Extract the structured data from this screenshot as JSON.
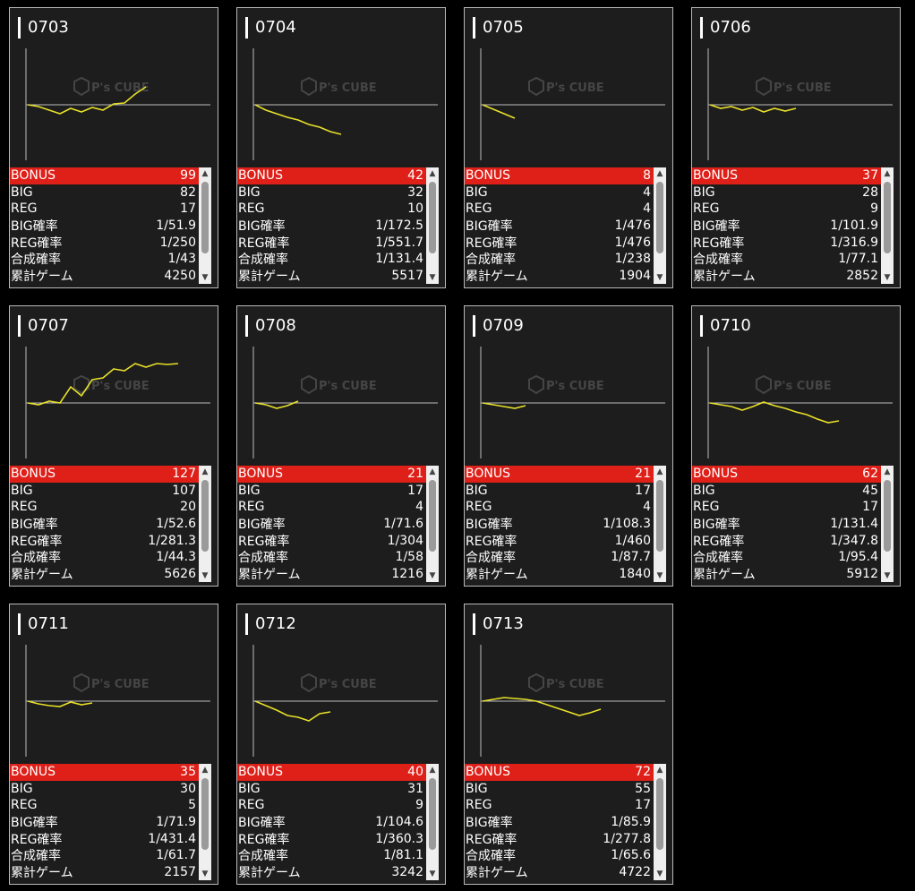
{
  "labels": {
    "bonus": "BONUS",
    "big": "BIG",
    "reg": "REG",
    "big_rate": "BIG確率",
    "reg_rate": "REG確率",
    "combined_rate": "合成確率",
    "total_games": "累計ゲーム"
  },
  "logo_text": "P's CUBE",
  "colors": {
    "line": "#e8e02a",
    "bonus_bar": "#de2019",
    "card_bg": "#1d1d1d",
    "border": "#b9b9b9"
  },
  "cards": [
    {
      "id": "0703",
      "bonus": "99",
      "big": "82",
      "reg": "17",
      "big_rate": "1/51.9",
      "reg_rate": "1/250",
      "combined_rate": "1/43",
      "total_games": "4250",
      "trend": [
        0,
        -2,
        -6,
        -10,
        -4,
        -8,
        -3,
        -6,
        1,
        2,
        12,
        20
      ]
    },
    {
      "id": "0704",
      "bonus": "42",
      "big": "32",
      "reg": "10",
      "big_rate": "1/172.5",
      "reg_rate": "1/551.7",
      "combined_rate": "1/131.4",
      "total_games": "5517",
      "trend": [
        0,
        -6,
        -10,
        -14,
        -17,
        -22,
        -25,
        -30,
        -33
      ]
    },
    {
      "id": "0705",
      "bonus": "8",
      "big": "4",
      "reg": "4",
      "big_rate": "1/476",
      "reg_rate": "1/476",
      "combined_rate": "1/238",
      "total_games": "1904",
      "trend": [
        0,
        -5,
        -10,
        -15
      ]
    },
    {
      "id": "0706",
      "bonus": "37",
      "big": "28",
      "reg": "9",
      "big_rate": "1/101.9",
      "reg_rate": "1/316.9",
      "combined_rate": "1/77.1",
      "total_games": "2852",
      "trend": [
        0,
        -4,
        -2,
        -6,
        -3,
        -8,
        -4,
        -7,
        -4
      ]
    },
    {
      "id": "0707",
      "bonus": "127",
      "big": "107",
      "reg": "20",
      "big_rate": "1/52.6",
      "reg_rate": "1/281.3",
      "combined_rate": "1/44.3",
      "total_games": "5626",
      "trend": [
        0,
        -2,
        2,
        0,
        18,
        8,
        26,
        28,
        38,
        36,
        44,
        40,
        44,
        43,
        44
      ]
    },
    {
      "id": "0708",
      "bonus": "21",
      "big": "17",
      "reg": "4",
      "big_rate": "1/71.6",
      "reg_rate": "1/304",
      "combined_rate": "1/58",
      "total_games": "1216",
      "trend": [
        0,
        -2,
        -6,
        -3,
        2
      ]
    },
    {
      "id": "0709",
      "bonus": "21",
      "big": "17",
      "reg": "4",
      "big_rate": "1/108.3",
      "reg_rate": "1/460",
      "combined_rate": "1/87.7",
      "total_games": "1840",
      "trend": [
        0,
        -2,
        -4,
        -6,
        -3
      ]
    },
    {
      "id": "0710",
      "bonus": "62",
      "big": "45",
      "reg": "17",
      "big_rate": "1/131.4",
      "reg_rate": "1/347.8",
      "combined_rate": "1/95.4",
      "total_games": "5912",
      "trend": [
        0,
        -2,
        -4,
        -8,
        -4,
        1,
        -3,
        -6,
        -10,
        -13,
        -18,
        -22,
        -20
      ]
    },
    {
      "id": "0711",
      "bonus": "35",
      "big": "30",
      "reg": "5",
      "big_rate": "1/71.9",
      "reg_rate": "1/431.4",
      "combined_rate": "1/61.7",
      "total_games": "2157",
      "trend": [
        0,
        -3,
        -5,
        -6,
        -1,
        -4,
        -2
      ]
    },
    {
      "id": "0712",
      "bonus": "40",
      "big": "31",
      "reg": "9",
      "big_rate": "1/104.6",
      "reg_rate": "1/360.3",
      "combined_rate": "1/81.1",
      "total_games": "3242",
      "trend": [
        0,
        -5,
        -10,
        -16,
        -18,
        -22,
        -14,
        -12
      ]
    },
    {
      "id": "0713",
      "bonus": "72",
      "big": "55",
      "reg": "17",
      "big_rate": "1/85.9",
      "reg_rate": "1/277.8",
      "combined_rate": "1/65.6",
      "total_games": "4722",
      "trend": [
        0,
        2,
        4,
        3,
        2,
        0,
        -4,
        -8,
        -12,
        -16,
        -13,
        -9
      ]
    }
  ]
}
